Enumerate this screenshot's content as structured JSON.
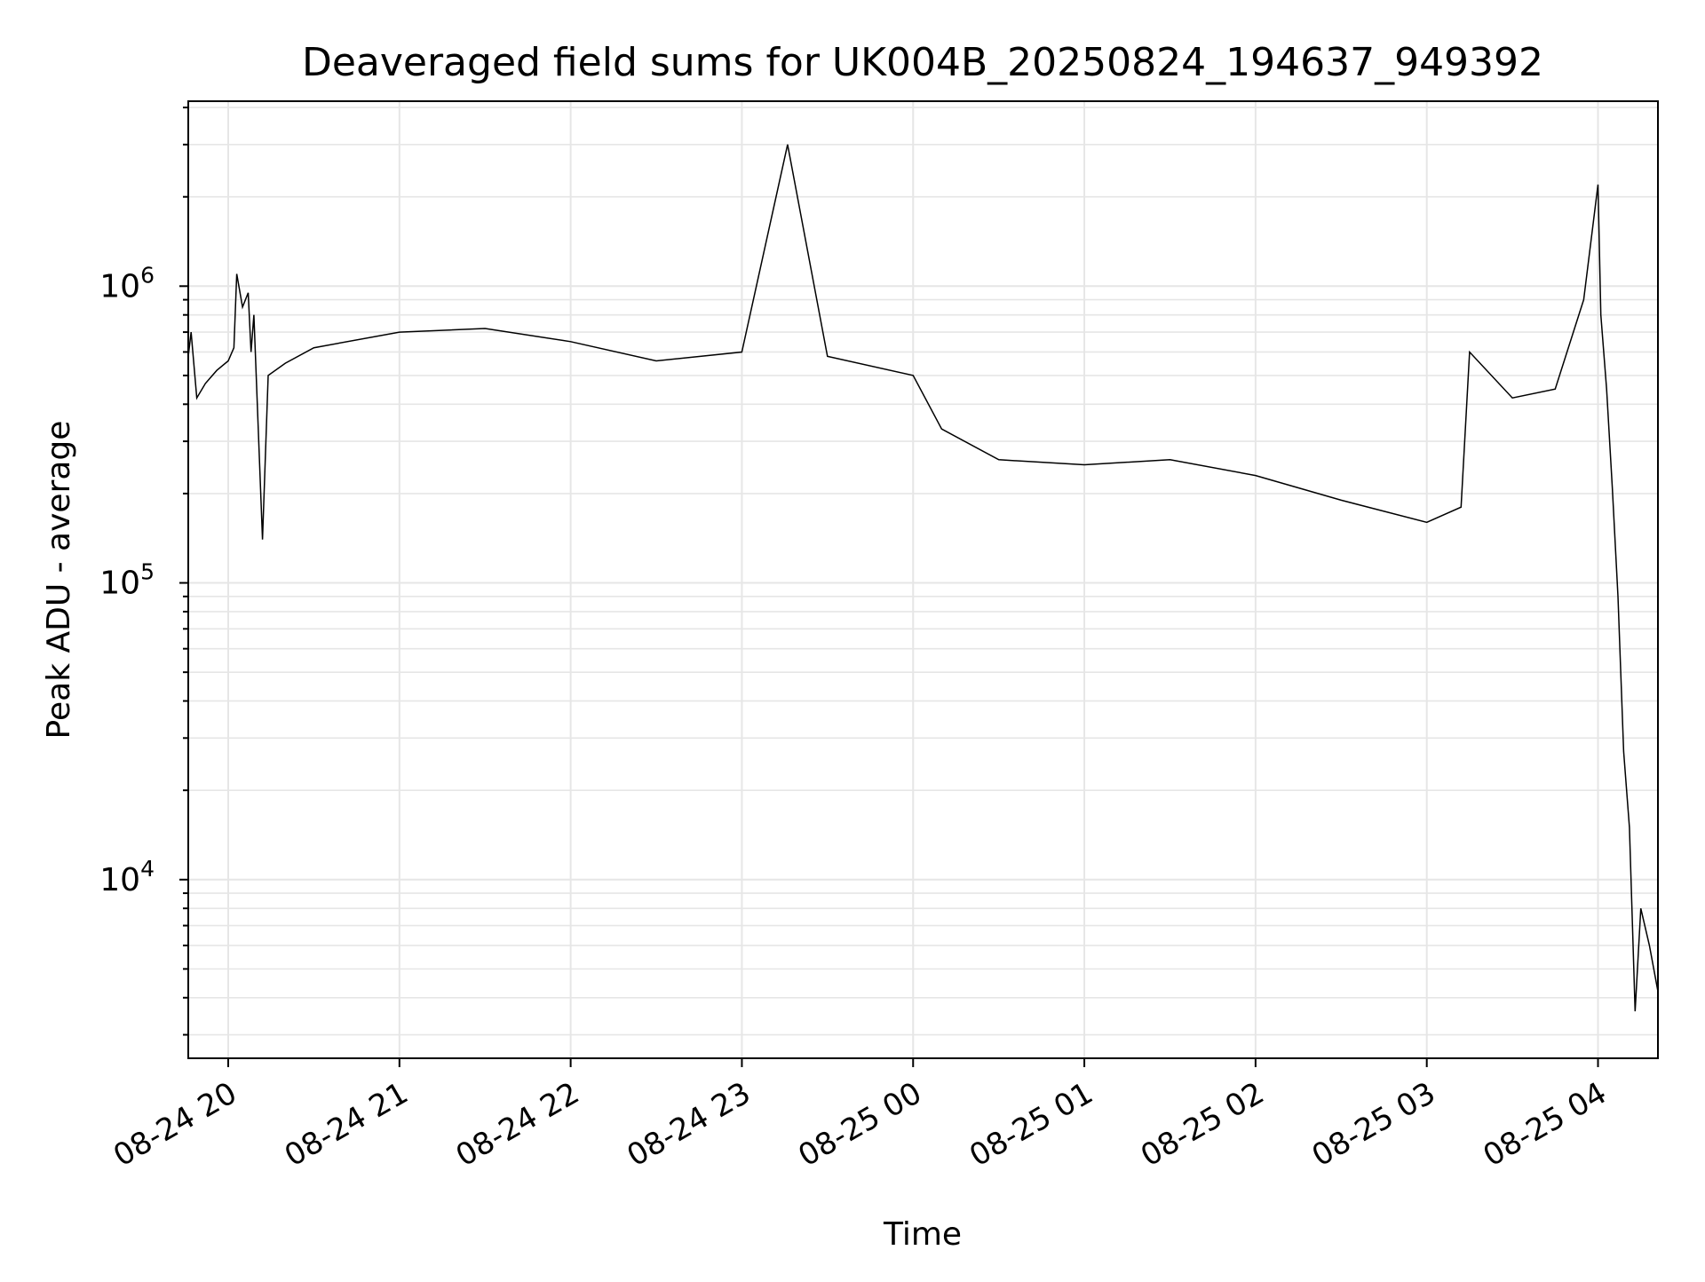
{
  "chart_data": {
    "type": "line",
    "title": "Deaveraged field sums for UK004B_20250824_194637_949392",
    "xlabel": "Time",
    "ylabel": "Peak ADU - average",
    "yscale": "log",
    "ylim": [
      2500,
      4200000
    ],
    "xlim": [
      "2025-08-24 19:46",
      "2025-08-25 04:21"
    ],
    "grid": true,
    "legend": "none",
    "line_color": "#000000",
    "grid_color": "#e6e6e6",
    "x_ticks": [
      {
        "t": "2025-08-24 20:00",
        "label": "08-24 20"
      },
      {
        "t": "2025-08-24 21:00",
        "label": "08-24 21"
      },
      {
        "t": "2025-08-24 22:00",
        "label": "08-24 22"
      },
      {
        "t": "2025-08-24 23:00",
        "label": "08-24 23"
      },
      {
        "t": "2025-08-25 00:00",
        "label": "08-25 00"
      },
      {
        "t": "2025-08-25 01:00",
        "label": "08-25 01"
      },
      {
        "t": "2025-08-25 02:00",
        "label": "08-25 02"
      },
      {
        "t": "2025-08-25 03:00",
        "label": "08-25 03"
      },
      {
        "t": "2025-08-25 04:00",
        "label": "08-25 04"
      }
    ],
    "y_major_ticks": [
      {
        "value": 10000,
        "base": "10",
        "exp": "4"
      },
      {
        "value": 100000,
        "base": "10",
        "exp": "5"
      },
      {
        "value": 1000000,
        "base": "10",
        "exp": "6"
      }
    ],
    "series": [
      {
        "points": [
          [
            "2025-08-24 19:46",
            580000
          ],
          [
            "2025-08-24 19:47",
            700000
          ],
          [
            "2025-08-24 19:49",
            420000
          ],
          [
            "2025-08-24 19:52",
            470000
          ],
          [
            "2025-08-24 19:56",
            520000
          ],
          [
            "2025-08-24 20:00",
            560000
          ],
          [
            "2025-08-24 20:02",
            620000
          ],
          [
            "2025-08-24 20:03",
            1100000
          ],
          [
            "2025-08-24 20:05",
            850000
          ],
          [
            "2025-08-24 20:07",
            950000
          ],
          [
            "2025-08-24 20:08",
            600000
          ],
          [
            "2025-08-24 20:09",
            800000
          ],
          [
            "2025-08-24 20:12",
            140000
          ],
          [
            "2025-08-24 20:14",
            500000
          ],
          [
            "2025-08-24 20:20",
            550000
          ],
          [
            "2025-08-24 20:30",
            620000
          ],
          [
            "2025-08-24 21:00",
            700000
          ],
          [
            "2025-08-24 21:30",
            720000
          ],
          [
            "2025-08-24 22:00",
            650000
          ],
          [
            "2025-08-24 22:30",
            560000
          ],
          [
            "2025-08-24 23:00",
            600000
          ],
          [
            "2025-08-24 23:16",
            3000000
          ],
          [
            "2025-08-24 23:30",
            580000
          ],
          [
            "2025-08-25 00:00",
            500000
          ],
          [
            "2025-08-25 00:10",
            330000
          ],
          [
            "2025-08-25 00:30",
            260000
          ],
          [
            "2025-08-25 01:00",
            250000
          ],
          [
            "2025-08-25 01:30",
            260000
          ],
          [
            "2025-08-25 02:00",
            230000
          ],
          [
            "2025-08-25 02:30",
            190000
          ],
          [
            "2025-08-25 03:00",
            160000
          ],
          [
            "2025-08-25 03:12",
            180000
          ],
          [
            "2025-08-25 03:15",
            600000
          ],
          [
            "2025-08-25 03:30",
            420000
          ],
          [
            "2025-08-25 03:45",
            450000
          ],
          [
            "2025-08-25 03:55",
            900000
          ],
          [
            "2025-08-25 04:00",
            2200000
          ],
          [
            "2025-08-25 04:01",
            800000
          ],
          [
            "2025-08-25 04:03",
            450000
          ],
          [
            "2025-08-25 04:05",
            210000
          ],
          [
            "2025-08-25 04:07",
            90000
          ],
          [
            "2025-08-25 04:09",
            27000
          ],
          [
            "2025-08-25 04:11",
            15000
          ],
          [
            "2025-08-25 04:13",
            3600
          ],
          [
            "2025-08-25 04:15",
            8000
          ],
          [
            "2025-08-25 04:18",
            6000
          ],
          [
            "2025-08-25 04:21",
            4200
          ]
        ]
      }
    ]
  }
}
